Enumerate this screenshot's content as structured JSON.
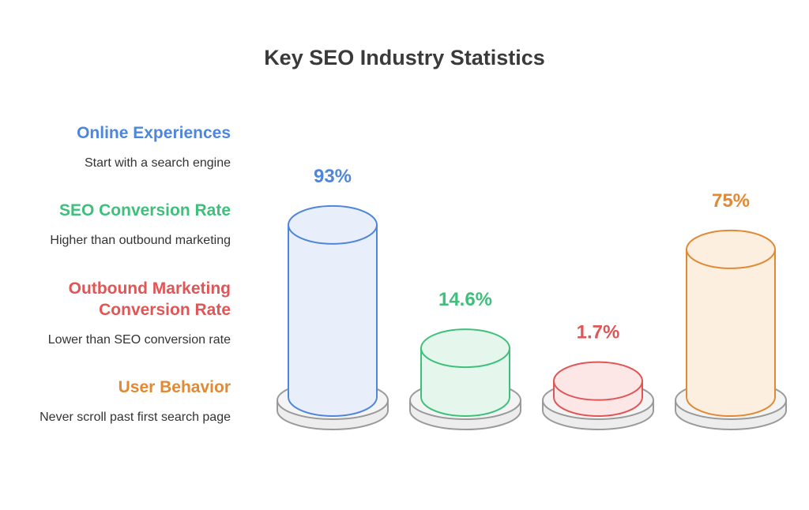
{
  "title": "Key SEO Industry Statistics",
  "colors": {
    "blue": "#4f86d9",
    "blue_fill": "#e8effb",
    "green": "#3ec07b",
    "green_fill": "#e5f7ec",
    "red": "#e05555",
    "red_fill": "#fde6e6",
    "orange": "#e08a35",
    "orange_fill": "#fdefe0",
    "base_stroke": "#9a9a9a",
    "base_fill": "#ededed"
  },
  "legend": [
    {
      "label": "Online Experiences",
      "desc": "Start with a search engine",
      "color": "#4f86d9"
    },
    {
      "label": "SEO Conversion Rate",
      "desc": "Higher than outbound marketing",
      "color": "#3ec07b"
    },
    {
      "label": "Outbound Marketing Conversion Rate",
      "desc": "Lower than SEO conversion rate",
      "color": "#e05555"
    },
    {
      "label": "User Behavior",
      "desc": "Never scroll past first search page",
      "color": "#e08a35"
    }
  ],
  "chart_data": {
    "type": "bar",
    "title": "Key SEO Industry Statistics",
    "categories": [
      "Online Experiences",
      "SEO Conversion Rate",
      "Outbound Marketing Conversion Rate",
      "User Behavior"
    ],
    "values": [
      93,
      14.6,
      1.7,
      75
    ],
    "value_labels": [
      "93%",
      "14.6%",
      "1.7%",
      "75%"
    ],
    "unit": "%",
    "style": "cylinder"
  }
}
